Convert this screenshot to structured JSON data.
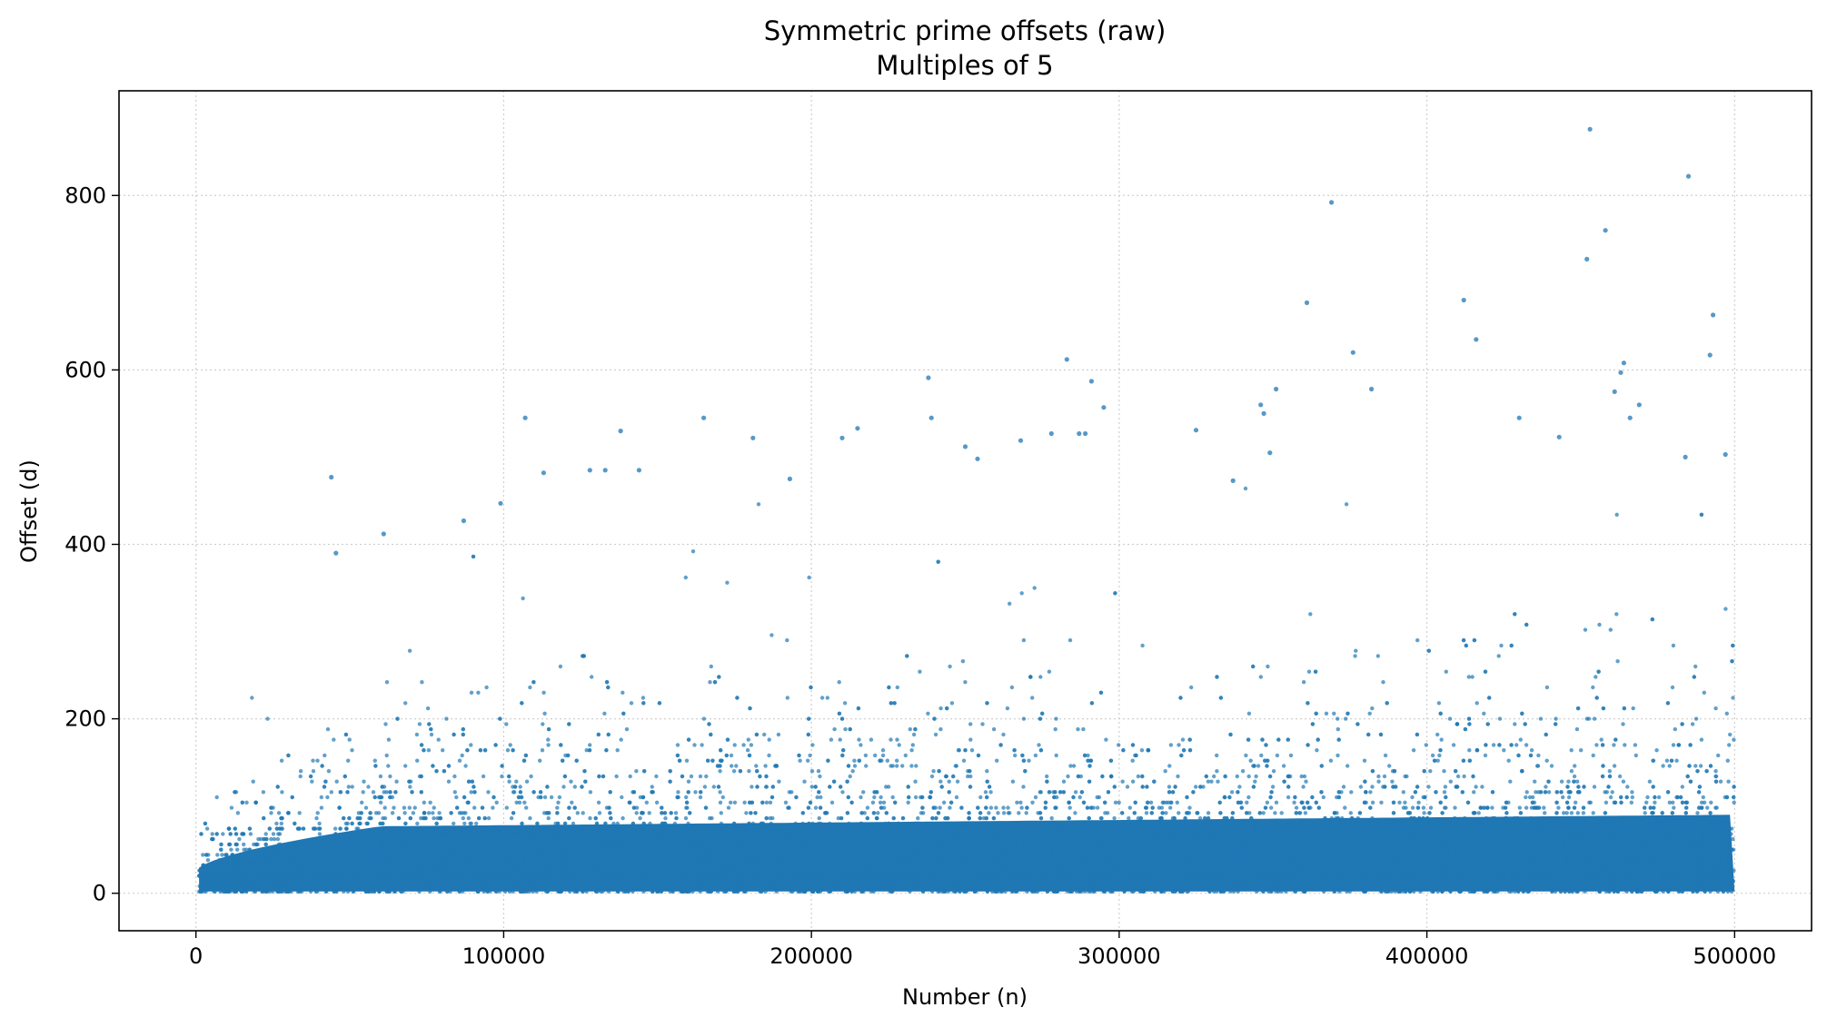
{
  "chart_data": {
    "type": "scatter",
    "title": "Symmetric prime offsets (raw)",
    "subtitle": "Multiples of 5",
    "xlabel": "Number (n)",
    "ylabel": "Offset (d)",
    "xlim": [
      -25000,
      525000
    ],
    "ylim": [
      -43,
      920
    ],
    "xticks": [
      0,
      100000,
      200000,
      300000,
      400000,
      500000
    ],
    "xtick_labels": [
      "0",
      "100000",
      "200000",
      "300000",
      "400000",
      "500000"
    ],
    "yticks": [
      0,
      200,
      400,
      600,
      800
    ],
    "ytick_labels": [
      "0",
      "200",
      "400",
      "600",
      "800"
    ],
    "grid": true,
    "marker_color": "#1f77b4",
    "series": [
      {
        "x": [
          44000,
          45500,
          61000,
          87000,
          99000,
          107000,
          113000,
          128000,
          133000,
          138000,
          144000,
          165000,
          181000,
          193000,
          210000,
          215000,
          238000,
          239000,
          250000,
          254000,
          268000,
          278000,
          283000,
          287000,
          289000,
          291000,
          295000,
          325000,
          337000,
          346000,
          347000,
          349000,
          351000,
          361000,
          369000,
          376000,
          382000,
          412000,
          416000,
          430000,
          443000,
          452000,
          453000,
          458000,
          461000,
          463000,
          464000,
          466000,
          469000,
          484000,
          485000,
          492000,
          493000,
          497000
        ],
        "y": [
          477,
          390,
          412,
          427,
          447,
          545,
          482,
          485,
          485,
          530,
          485,
          545,
          522,
          475,
          522,
          533,
          591,
          545,
          512,
          498,
          519,
          527,
          612,
          527,
          527,
          587,
          557,
          531,
          473,
          560,
          550,
          505,
          578,
          677,
          792,
          620,
          578,
          680,
          635,
          545,
          523,
          727,
          876,
          760,
          575,
          597,
          608,
          545,
          560,
          500,
          822,
          617,
          663,
          503
        ]
      }
    ]
  }
}
